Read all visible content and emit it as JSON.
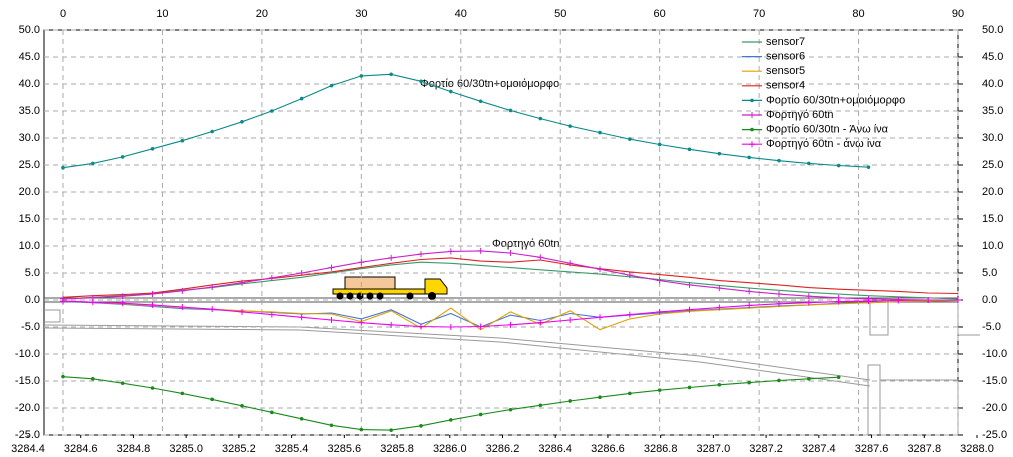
{
  "chart_data": {
    "type": "line",
    "annotations": [
      "Φορτίο 60/30tn+ομοιόμορφο",
      "Φορτηγό 60tn"
    ],
    "x": [
      0,
      3,
      6,
      9,
      12,
      15,
      18,
      21,
      24,
      27,
      30,
      33,
      36,
      39,
      42,
      45,
      48,
      51,
      54,
      57,
      60,
      63,
      66,
      69,
      72,
      75,
      78,
      81,
      84,
      87,
      90
    ],
    "xlim": [
      0,
      90
    ],
    "xticks": [
      0,
      10,
      20,
      30,
      40,
      50,
      60,
      70,
      80,
      90
    ],
    "x2lim": [
      3284.4,
      3288.0
    ],
    "x2ticks": [
      3284.4,
      3284.6,
      3284.8,
      {
        "value": 3285.0,
        "label": "3285.0"
      },
      3285.2,
      3285.4,
      3285.6,
      3285.8,
      {
        "value": 3286.0,
        "label": "3286.0"
      },
      3286.2,
      3286.4,
      3286.6,
      3286.8,
      {
        "value": 3287.0,
        "label": "3287.0"
      },
      3287.2,
      3287.4,
      3287.6,
      3287.8,
      {
        "value": 3288.0,
        "label": "3288.0"
      }
    ],
    "ylim": [
      -25,
      50
    ],
    "yticks": [
      {
        "value": 50,
        "label": "50.0"
      },
      {
        "value": 45,
        "label": "45.0"
      },
      {
        "value": 40,
        "label": "40.0"
      },
      {
        "value": 35,
        "label": "35.0"
      },
      {
        "value": 30,
        "label": "30.0"
      },
      {
        "value": 25,
        "label": "25.0"
      },
      {
        "value": 20,
        "label": "20.0"
      },
      {
        "value": 15,
        "label": "15.0"
      },
      {
        "value": 10,
        "label": "10.0"
      },
      {
        "value": 5,
        "label": "5.0"
      },
      {
        "value": 0,
        "label": "0.0"
      },
      {
        "value": -5,
        "label": "-5.0"
      },
      {
        "value": -10,
        "label": "-10.0"
      },
      {
        "value": -15,
        "label": "-15.0"
      },
      {
        "value": -20,
        "label": "-20.0"
      },
      {
        "value": -25,
        "label": "-25.0"
      }
    ],
    "grid": true,
    "legend": "top-right",
    "series": [
      {
        "name": "sensor7",
        "color": "#3c9a6a",
        "marker": "none",
        "values": [
          0.2,
          0.5,
          0.8,
          1.2,
          1.8,
          2.3,
          3.0,
          3.6,
          4.2,
          5.0,
          5.8,
          6.5,
          7.0,
          6.8,
          6.4,
          6.0,
          5.6,
          5.2,
          4.8,
          4.3,
          3.8,
          3.2,
          2.7,
          2.2,
          1.8,
          1.4,
          1.1,
          0.8,
          0.6,
          0.4,
          0.2
        ]
      },
      {
        "name": "sensor6",
        "color": "#4477dd",
        "marker": "none",
        "values": [
          -0.3,
          -0.5,
          -0.8,
          -1.2,
          -1.6,
          -1.8,
          -2.0,
          -2.3,
          -2.6,
          -2.4,
          -3.5,
          -1.8,
          -4.5,
          -2.5,
          -5.0,
          -2.8,
          -3.8,
          -2.5,
          -3.2,
          -2.8,
          -2.4,
          -2.0,
          -1.7,
          -1.4,
          -1.1,
          -0.9,
          -0.6,
          -0.5,
          -0.3,
          -0.2,
          -0.1
        ]
      },
      {
        "name": "sensor5",
        "color": "#e0a000",
        "marker": "none",
        "values": [
          -0.2,
          -0.4,
          -0.7,
          -1.0,
          -1.4,
          -1.7,
          -2.0,
          -2.2,
          -2.5,
          -2.6,
          -4.0,
          -2.0,
          -5.2,
          -1.5,
          -5.5,
          -2.2,
          -4.5,
          -2.0,
          -5.5,
          -3.5,
          -2.6,
          -2.1,
          -1.8,
          -1.5,
          -1.2,
          -0.9,
          -0.7,
          -0.5,
          -0.3,
          -0.2,
          -0.1
        ]
      },
      {
        "name": "sensor4",
        "color": "#dd2222",
        "marker": "none",
        "values": [
          0.5,
          0.8,
          1.0,
          1.3,
          2.0,
          2.8,
          3.5,
          4.0,
          4.6,
          5.2,
          6.0,
          6.8,
          7.5,
          7.8,
          7.2,
          7.0,
          7.4,
          6.5,
          5.8,
          5.2,
          4.7,
          4.2,
          3.6,
          3.2,
          2.8,
          2.3,
          2.0,
          1.8,
          1.6,
          1.3,
          1.2
        ]
      },
      {
        "name": "Φορτίο 60/30tn+ομοιόμορφο",
        "color": "#0a8a8a",
        "marker": "circle",
        "values": [
          24.5,
          25.3,
          26.5,
          28,
          29.5,
          31.2,
          33,
          35,
          37.3,
          39.7,
          41.5,
          41.8,
          40.5,
          38.6,
          36.8,
          35.1,
          33.6,
          32.2,
          31,
          29.8,
          28.8,
          27.9,
          27.1,
          26.4,
          25.8,
          25.3,
          24.9,
          24.6,
          null,
          null,
          null
        ]
      },
      {
        "name": "Φορτηγό 60tn",
        "color": "#cc22cc",
        "marker": "plus",
        "values": [
          0.2,
          0.4,
          0.7,
          1.1,
          1.7,
          2.4,
          3.2,
          4.1,
          5,
          6,
          7,
          7.8,
          8.5,
          9,
          9.1,
          8.7,
          7.9,
          6.8,
          5.7,
          4.6,
          3.6,
          2.8,
          2.2,
          1.6,
          1.1,
          0.7,
          0.4,
          0.2,
          0.1,
          0,
          0
        ]
      },
      {
        "name": "Φορτίο 60/30tn - Άνω ίνα",
        "color": "#1a8a1a",
        "marker": "circle",
        "values": [
          -14.2,
          -14.6,
          -15.4,
          -16.3,
          -17.3,
          -18.4,
          -19.6,
          -20.8,
          -22,
          -23.2,
          -24,
          -24.1,
          -23.3,
          -22.2,
          -21.2,
          -20.3,
          -19.5,
          -18.7,
          -18,
          -17.3,
          -16.7,
          -16.2,
          -15.7,
          -15.3,
          -14.9,
          -14.6,
          -14.3,
          null,
          null,
          null,
          null
        ]
      },
      {
        "name": "Φορτηγό 60tn - άνω ίνα",
        "color": "#ee00ee",
        "marker": "plus",
        "values": [
          -0.2,
          -0.4,
          -0.6,
          -0.9,
          -1.3,
          -1.7,
          -2.2,
          -2.7,
          -3.2,
          -3.7,
          -4.2,
          -4.6,
          -4.9,
          -5,
          -4.9,
          -4.6,
          -4.2,
          -3.7,
          -3.2,
          -2.7,
          -2.2,
          -1.8,
          -1.4,
          -1,
          -0.7,
          -0.5,
          -0.3,
          -0.2,
          -0.1,
          0,
          0
        ]
      }
    ]
  }
}
